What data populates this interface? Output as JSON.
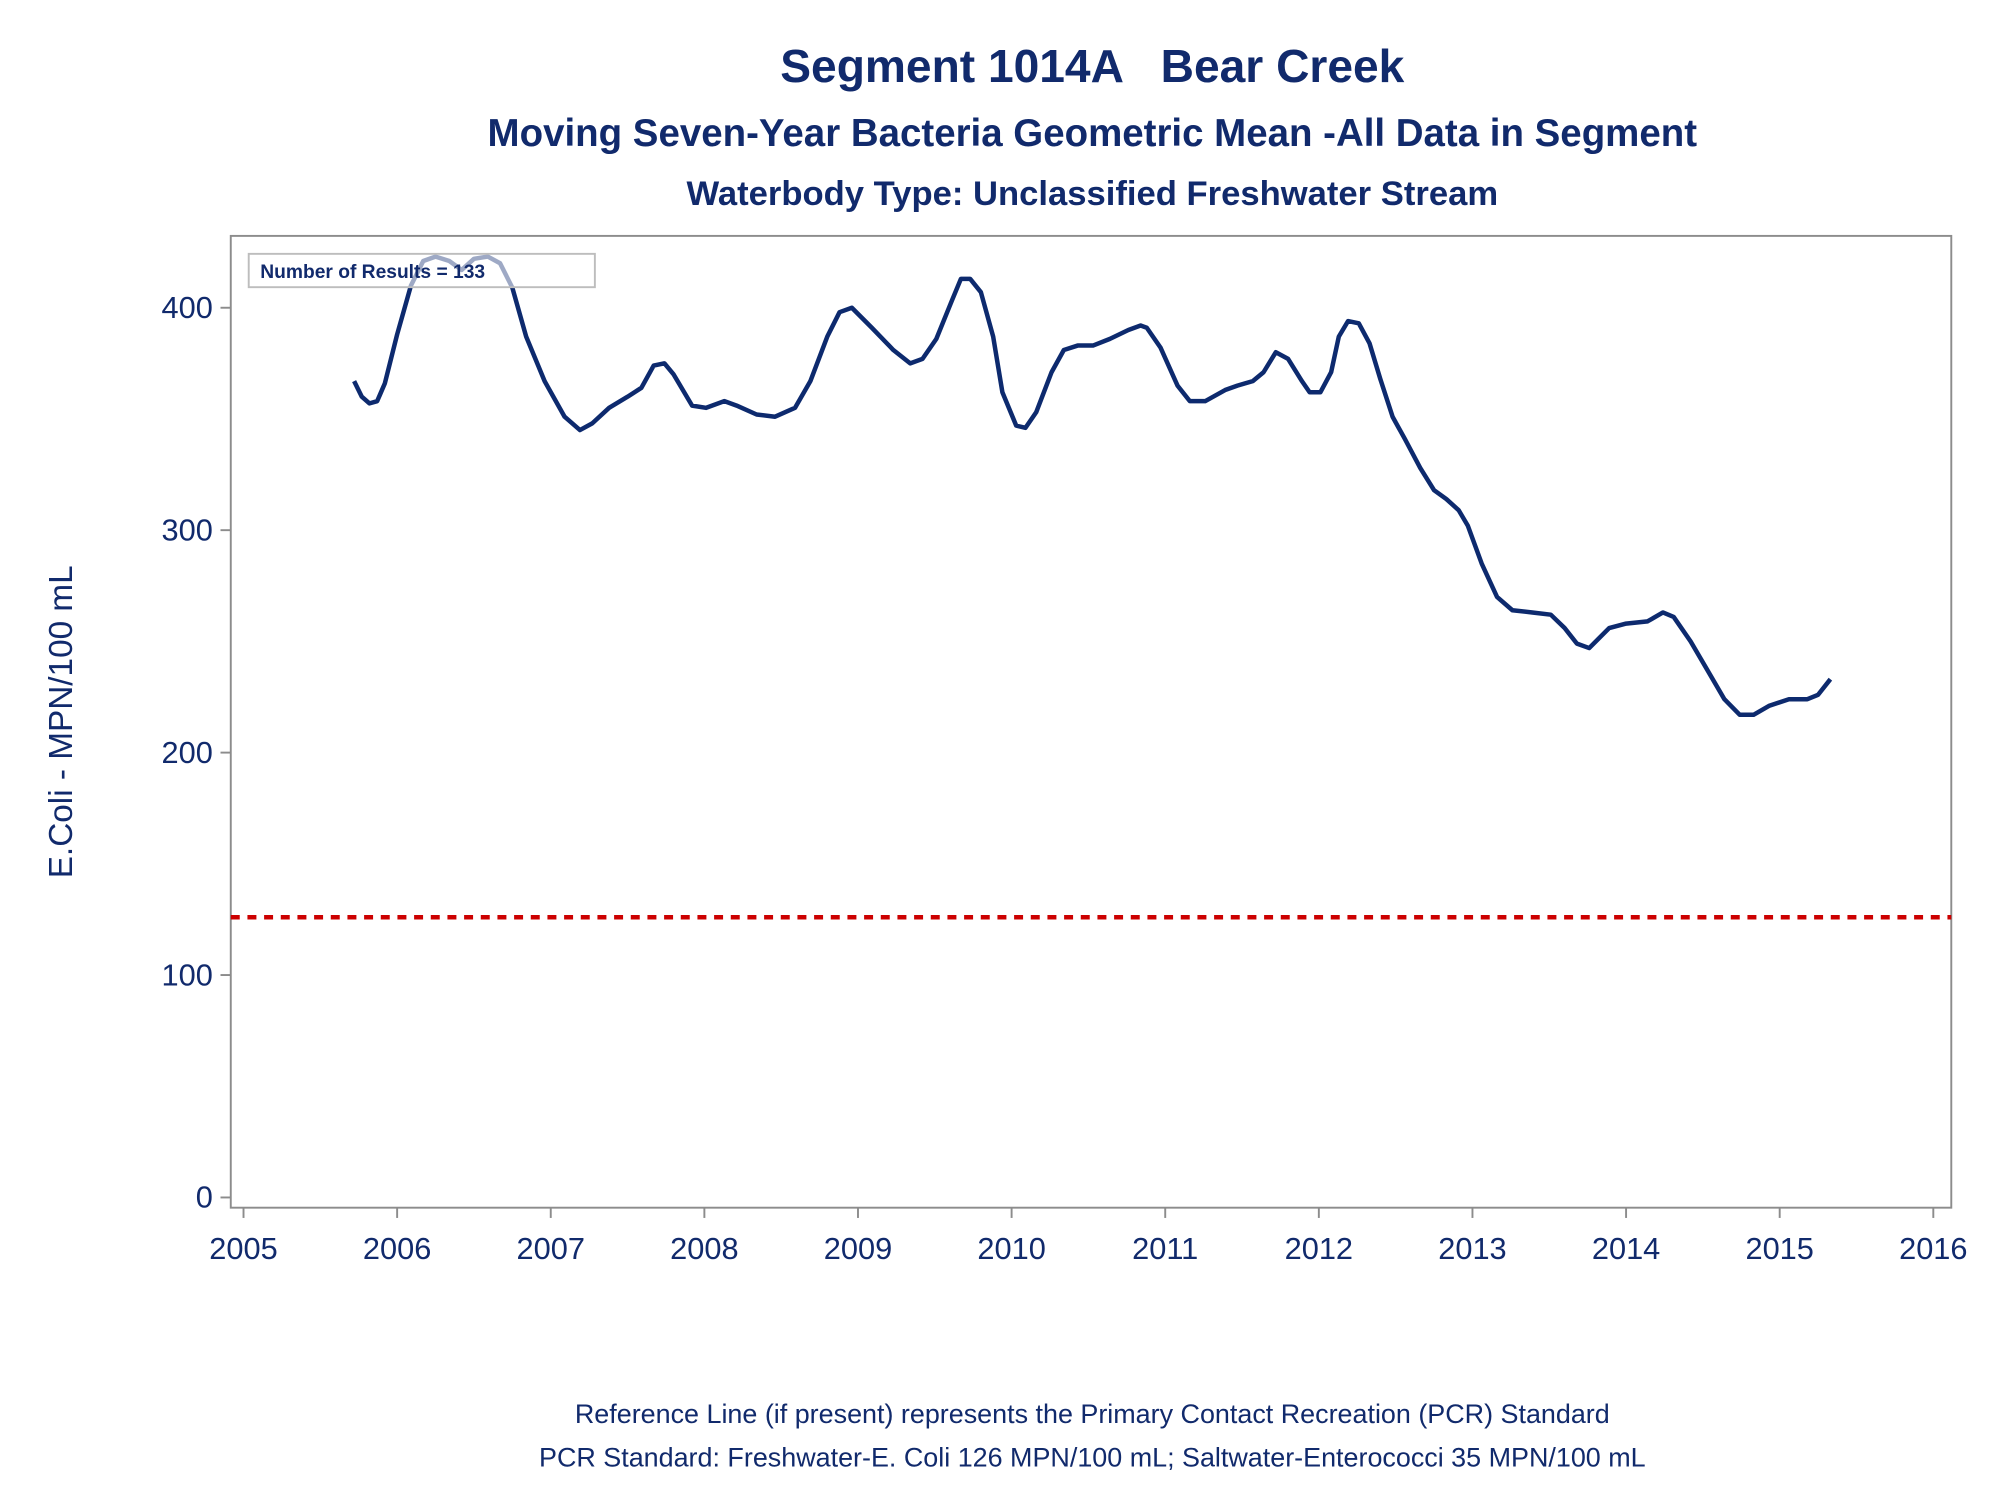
{
  "chart_data": {
    "type": "line",
    "title": "Segment 1014A   Bear Creek",
    "subtitle": "Moving Seven-Year Bacteria Geometric Mean -All Data in Segment",
    "subtitle2": "Waterbody Type: Unclassified Freshwater Stream",
    "y_label": "E.Coli - MPN/100 mL",
    "annotation": "Number of Results = 133",
    "footnotes": [
      "Reference Line (if present) represents the Primary Contact Recreation (PCR) Standard",
      "PCR Standard: Freshwater-E. Coli 126 MPN/100 mL; Saltwater-Enterococci 35 MPN/100 mL"
    ],
    "xlim": [
      2004.917,
      2016.117
    ],
    "xticks": [
      2005,
      2006,
      2007,
      2008,
      2009,
      2010,
      2011,
      2012,
      2013,
      2014,
      2015,
      2016
    ],
    "ylim": [
      -4.6,
      432.3
    ],
    "yticks": [
      0,
      100,
      200,
      300,
      400
    ],
    "reference_line": {
      "value": 126,
      "color": "#cc0000"
    },
    "series": [
      {
        "color": "#0d2a6e",
        "x": [
          2005.72,
          2005.77,
          2005.82,
          2005.87,
          2005.92,
          2006.0,
          2006.09,
          2006.17,
          2006.25,
          2006.34,
          2006.42,
          2006.5,
          2006.59,
          2006.67,
          2006.75,
          2006.84,
          2006.96,
          2007.09,
          2007.19,
          2007.27,
          2007.38,
          2007.5,
          2007.59,
          2007.67,
          2007.74,
          2007.8,
          2007.92,
          2008.01,
          2008.13,
          2008.21,
          2008.34,
          2008.46,
          2008.59,
          2008.69,
          2008.8,
          2008.88,
          2008.96,
          2009.09,
          2009.23,
          2009.34,
          2009.42,
          2009.51,
          2009.61,
          2009.67,
          2009.73,
          2009.8,
          2009.88,
          2009.94,
          2010.03,
          2010.09,
          2010.16,
          2010.26,
          2010.34,
          2010.43,
          2010.53,
          2010.64,
          2010.76,
          2010.84,
          2010.88,
          2010.97,
          2011.08,
          2011.16,
          2011.26,
          2011.39,
          2011.47,
          2011.57,
          2011.64,
          2011.72,
          2011.8,
          2011.89,
          2011.94,
          2012.01,
          2012.08,
          2012.13,
          2012.19,
          2012.26,
          2012.33,
          2012.4,
          2012.48,
          2012.56,
          2012.66,
          2012.75,
          2012.83,
          2012.91,
          2012.97,
          2013.06,
          2013.16,
          2013.26,
          2013.39,
          2013.51,
          2013.6,
          2013.68,
          2013.76,
          2013.89,
          2014.0,
          2014.14,
          2014.24,
          2014.31,
          2014.42,
          2014.53,
          2014.64,
          2014.74,
          2014.83,
          2014.93,
          2015.06,
          2015.18,
          2015.25,
          2015.33
        ],
        "values": [
          367,
          360,
          357,
          358,
          366,
          388,
          410,
          421,
          423,
          421,
          417,
          422,
          423,
          420,
          409,
          387,
          367,
          351,
          345,
          348,
          355,
          360,
          364,
          374,
          375,
          370,
          356,
          355,
          358,
          356,
          352,
          351,
          355,
          367,
          387,
          398,
          400,
          391,
          381,
          375,
          377,
          386,
          403,
          413,
          413,
          407,
          387,
          362,
          347,
          346,
          353,
          371,
          381,
          383,
          383,
          386,
          390,
          392,
          391,
          382,
          365,
          358,
          358,
          363,
          365,
          367,
          371,
          380,
          377,
          367,
          362,
          362,
          371,
          387,
          394,
          393,
          384,
          368,
          351,
          341,
          328,
          318,
          314,
          309,
          302,
          285,
          270,
          264,
          263,
          262,
          256,
          249,
          247,
          256,
          258,
          259,
          263,
          261,
          250,
          237,
          224,
          217,
          217,
          221,
          224,
          224,
          226,
          233
        ]
      }
    ]
  }
}
